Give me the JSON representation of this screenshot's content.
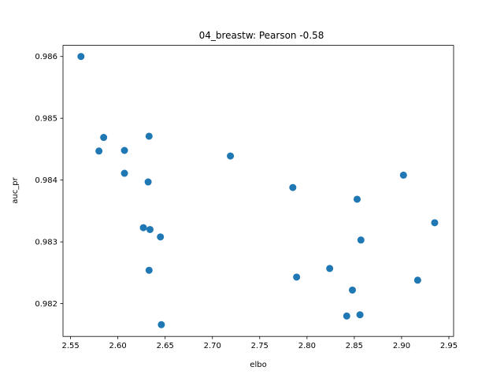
{
  "chart_data": {
    "type": "scatter",
    "title": "04_breastw: Pearson -0.58",
    "xlabel": "elbo",
    "ylabel": "auc_pr",
    "xlim": [
      2.542,
      2.955
    ],
    "ylim": [
      0.98147,
      0.98618
    ],
    "xticks": [
      2.55,
      2.6,
      2.65,
      2.7,
      2.75,
      2.8,
      2.85,
      2.9,
      2.95
    ],
    "xtick_labels": [
      "2.55",
      "2.60",
      "2.65",
      "2.70",
      "2.75",
      "2.80",
      "2.85",
      "2.90",
      "2.95"
    ],
    "yticks": [
      0.982,
      0.983,
      0.984,
      0.985,
      0.986
    ],
    "ytick_labels": [
      "0.982",
      "0.983",
      "0.984",
      "0.985",
      "0.986"
    ],
    "grid": false,
    "marker_color": "#1f77b4",
    "points": [
      {
        "x": 2.561,
        "y": 0.986
      },
      {
        "x": 2.58,
        "y": 0.98447
      },
      {
        "x": 2.585,
        "y": 0.98469
      },
      {
        "x": 2.607,
        "y": 0.98448
      },
      {
        "x": 2.607,
        "y": 0.98411
      },
      {
        "x": 2.633,
        "y": 0.98471
      },
      {
        "x": 2.632,
        "y": 0.98397
      },
      {
        "x": 2.627,
        "y": 0.98323
      },
      {
        "x": 2.634,
        "y": 0.9832
      },
      {
        "x": 2.645,
        "y": 0.98308
      },
      {
        "x": 2.633,
        "y": 0.98254
      },
      {
        "x": 2.646,
        "y": 0.98166
      },
      {
        "x": 2.719,
        "y": 0.98439
      },
      {
        "x": 2.785,
        "y": 0.98388
      },
      {
        "x": 2.789,
        "y": 0.98243
      },
      {
        "x": 2.824,
        "y": 0.98257
      },
      {
        "x": 2.848,
        "y": 0.98222
      },
      {
        "x": 2.842,
        "y": 0.9818
      },
      {
        "x": 2.856,
        "y": 0.98182
      },
      {
        "x": 2.853,
        "y": 0.98369
      },
      {
        "x": 2.857,
        "y": 0.98303
      },
      {
        "x": 2.902,
        "y": 0.98408
      },
      {
        "x": 2.917,
        "y": 0.98238
      },
      {
        "x": 2.935,
        "y": 0.98331
      }
    ]
  }
}
